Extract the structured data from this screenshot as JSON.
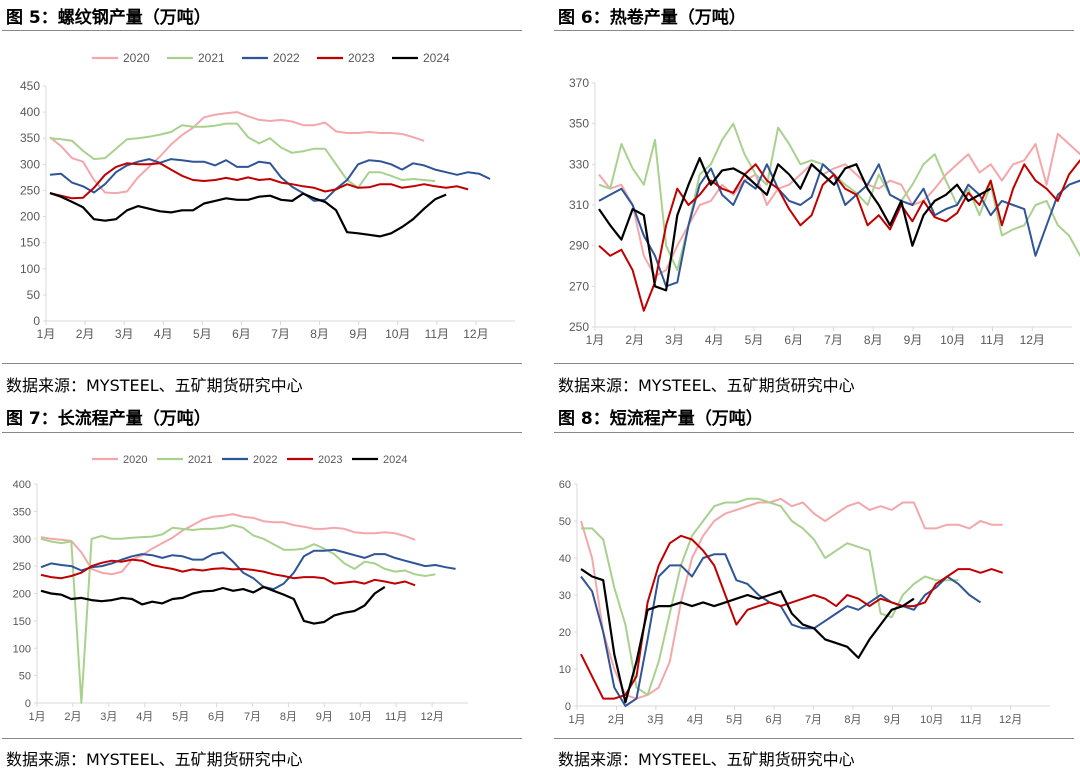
{
  "colors": {
    "2020": "#f4a7aa",
    "2021": "#a9d18e",
    "2022": "#2f5597",
    "2023": "#c00000",
    "2024": "#000000",
    "axis": "#d9d9d9",
    "text": "#595959"
  },
  "panels": [
    {
      "title": "图 5：螺纹钢产量（万吨）",
      "source": "数据来源：MYSTEEL、五矿期货研究中心",
      "chart_data": {
        "type": "line",
        "xlabel": "",
        "ylabel": "",
        "x_ticks": [
          "1月",
          "2月",
          "3月",
          "4月",
          "5月",
          "6月",
          "7月",
          "8月",
          "9月",
          "10月",
          "11月",
          "12月"
        ],
        "ylim": [
          0,
          450
        ],
        "yticks": [
          0,
          50,
          100,
          150,
          200,
          250,
          300,
          350,
          400,
          450
        ],
        "legend_position": "top",
        "series": [
          {
            "name": "2020",
            "values": [
              352,
              335,
              312,
              305,
              270,
              246,
              245,
              248,
              275,
              295,
              315,
              338,
              356,
              370,
              390,
              395,
              398,
              400,
              392,
              385,
              383,
              385,
              382,
              375,
              375,
              380,
              363,
              360,
              360,
              362,
              360,
              360,
              358,
              352,
              345
            ]
          },
          {
            "name": "2021",
            "values": [
              350,
              348,
              345,
              326,
              310,
              312,
              330,
              348,
              350,
              353,
              357,
              362,
              375,
              372,
              372,
              374,
              378,
              378,
              352,
              340,
              350,
              332,
              322,
              325,
              330,
              330,
              300,
              270,
              255,
              285,
              285,
              278,
              270,
              272,
              270,
              268
            ]
          },
          {
            "name": "2022",
            "values": [
              280,
              282,
              265,
              258,
              246,
              262,
              285,
              298,
              305,
              310,
              303,
              310,
              308,
              305,
              305,
              298,
              308,
              295,
              295,
              305,
              302,
              275,
              257,
              245,
              230,
              232,
              253,
              270,
              300,
              308,
              306,
              300,
              290,
              302,
              298,
              290,
              285,
              280,
              285,
              282,
              272
            ]
          },
          {
            "name": "2023",
            "values": [
              245,
              240,
              235,
              236,
              255,
              280,
              295,
              302,
              300,
              300,
              302,
              290,
              278,
              270,
              268,
              270,
              274,
              270,
              275,
              270,
              272,
              265,
              262,
              258,
              255,
              248,
              252,
              262,
              255,
              256,
              262,
              262,
              255,
              258,
              262,
              258,
              255,
              258,
              252
            ]
          },
          {
            "name": "2024",
            "values": [
              245,
              238,
              228,
              218,
              195,
              192,
              195,
              212,
              220,
              215,
              210,
              208,
              212,
              212,
              225,
              230,
              235,
              232,
              232,
              238,
              240,
              232,
              230,
              244,
              235,
              228,
              212,
              170,
              168,
              165,
              162,
              168,
              180,
              195,
              215,
              233,
              242
            ]
          }
        ]
      }
    },
    {
      "title": "图 6：热卷产量（万吨）",
      "source": "数据来源：MYSTEEL、五矿期货研究中心",
      "chart_data": {
        "type": "line",
        "xlabel": "",
        "ylabel": "",
        "x_ticks": [
          "1月",
          "2月",
          "3月",
          "4月",
          "5月",
          "6月",
          "7月",
          "8月",
          "9月",
          "10月",
          "11月",
          "12月"
        ],
        "ylim": [
          250,
          370
        ],
        "yticks": [
          250,
          270,
          290,
          310,
          330,
          350,
          370
        ],
        "legend_position": "top",
        "series": [
          {
            "name": "2020",
            "values": [
              325,
              318,
              320,
              310,
              285,
              275,
              278,
              290,
              300,
              310,
              312,
              320,
              315,
              322,
              325,
              310,
              318,
              320,
              325,
              330,
              325,
              328,
              330,
              325,
              320,
              318,
              322,
              320,
              310,
              312,
              318,
              325,
              330,
              335,
              326,
              330,
              322,
              330,
              332,
              340,
              320,
              345,
              340,
              335,
              336,
              340,
              345,
              352,
              345,
              335,
              333
            ]
          },
          {
            "name": "2021",
            "values": [
              320,
              318,
              340,
              328,
              320,
              342,
              290,
              278,
              300,
              325,
              330,
              342,
              350,
              335,
              325,
              320,
              348,
              340,
              330,
              332,
              330,
              325,
              320,
              316,
              310,
              325,
              315,
              312,
              320,
              330,
              335,
              322,
              310,
              318,
              305,
              320,
              295,
              298,
              300,
              310,
              312,
              300,
              295,
              285,
              280
            ]
          },
          {
            "name": "2022",
            "values": [
              312,
              315,
              318,
              310,
              295,
              285,
              270,
              272,
              300,
              320,
              328,
              315,
              310,
              322,
              318,
              330,
              318,
              312,
              310,
              314,
              330,
              325,
              310,
              315,
              320,
              330,
              315,
              312,
              310,
              318,
              305,
              308,
              310,
              320,
              315,
              305,
              312,
              310,
              308,
              285,
              300,
              315,
              320,
              322,
              310,
              303,
              310,
              312,
              310,
              298,
              304
            ]
          },
          {
            "name": "2023",
            "values": [
              290,
              285,
              288,
              278,
              258,
              272,
              300,
              318,
              310,
              315,
              322,
              318,
              316,
              325,
              330,
              322,
              318,
              308,
              300,
              305,
              320,
              325,
              318,
              315,
              300,
              305,
              298,
              310,
              302,
              312,
              304,
              302,
              306,
              316,
              310,
              322,
              300,
              318,
              330,
              322,
              318,
              312,
              325,
              332,
              336,
              320,
              325,
              327
            ]
          },
          {
            "name": "2024",
            "values": [
              308,
              300,
              293,
              308,
              305,
              270,
              268,
              305,
              320,
              333,
              320,
              327,
              328,
              325,
              320,
              315,
              330,
              325,
              318,
              330,
              325,
              320,
              328,
              330,
              318,
              310,
              300,
              312,
              290,
              305,
              312,
              315,
              320,
              312,
              315,
              318
            ]
          }
        ]
      }
    },
    {
      "title": "图 7：长流程产量（万吨）",
      "source": "数据来源：MYSTEEL、五矿期货研究中心",
      "chart_data": {
        "type": "line",
        "xlabel": "",
        "ylabel": "",
        "x_ticks": [
          "1月",
          "2月",
          "3月",
          "4月",
          "5月",
          "6月",
          "7月",
          "8月",
          "9月",
          "10月",
          "11月",
          "12月"
        ],
        "ylim": [
          0,
          400
        ],
        "yticks": [
          0,
          50,
          100,
          150,
          200,
          250,
          300,
          350,
          400
        ],
        "legend_position": "top",
        "series": [
          {
            "name": "2020",
            "values": [
              303,
              300,
              298,
              296,
              275,
              245,
              238,
              235,
              240,
              262,
              270,
              282,
              292,
              302,
              315,
              325,
              335,
              340,
              342,
              345,
              340,
              338,
              332,
              330,
              330,
              325,
              322,
              318,
              318,
              320,
              318,
              312,
              310,
              310,
              312,
              310,
              305,
              298
            ]
          },
          {
            "name": "2021",
            "values": [
              300,
              295,
              292,
              295,
              0,
              300,
              305,
              300,
              300,
              302,
              303,
              304,
              308,
              320,
              318,
              316,
              318,
              318,
              320,
              325,
              320,
              306,
              300,
              290,
              280,
              280,
              282,
              290,
              282,
              272,
              255,
              245,
              258,
              255,
              245,
              240,
              242,
              235,
              232,
              235
            ]
          },
          {
            "name": "2022",
            "values": [
              248,
              255,
              252,
              250,
              242,
              248,
              250,
              255,
              262,
              268,
              272,
              270,
              265,
              270,
              268,
              262,
              262,
              272,
              275,
              258,
              238,
              228,
              212,
              208,
              218,
              238,
              268,
              278,
              278,
              280,
              275,
              270,
              265,
              272,
              272,
              265,
              260,
              255,
              250,
              252,
              248,
              245
            ]
          },
          {
            "name": "2023",
            "values": [
              234,
              230,
              228,
              232,
              238,
              250,
              256,
              260,
              258,
              262,
              260,
              252,
              248,
              245,
              240,
              244,
              242,
              245,
              246,
              244,
              245,
              243,
              240,
              235,
              232,
              228,
              230,
              230,
              228,
              218,
              220,
              222,
              218,
              225,
              222,
              218,
              222,
              215
            ]
          },
          {
            "name": "2024",
            "values": [
              205,
              200,
              198,
              190,
              192,
              188,
              186,
              188,
              192,
              190,
              180,
              185,
              182,
              190,
              192,
              200,
              204,
              205,
              210,
              205,
              208,
              202,
              212,
              205,
              198,
              190,
              150,
              145,
              148,
              160,
              165,
              168,
              178,
              200,
              212
            ]
          }
        ]
      }
    },
    {
      "title": "图 8：短流程产量（万吨）",
      "source": "数据来源：MYSTEEL、五矿期货研究中心",
      "chart_data": {
        "type": "line",
        "xlabel": "",
        "ylabel": "",
        "x_ticks": [
          "1月",
          "2月",
          "3月",
          "4月",
          "5月",
          "6月",
          "7月",
          "8月",
          "9月",
          "10月",
          "11月",
          "12月"
        ],
        "ylim": [
          0,
          60
        ],
        "yticks": [
          0,
          10,
          20,
          30,
          40,
          50,
          60
        ],
        "legend_position": "top",
        "series": [
          {
            "name": "2020",
            "values": [
              50,
              40,
              20,
              10,
              3,
              2,
              3,
              5,
              12,
              28,
              40,
              46,
              50,
              52,
              53,
              54,
              55,
              55,
              56,
              54,
              55,
              52,
              50,
              52,
              54,
              55,
              53,
              54,
              53,
              55,
              55,
              48,
              48,
              49,
              49,
              48,
              50,
              49,
              49
            ]
          },
          {
            "name": "2021",
            "values": [
              48,
              48,
              45,
              32,
              22,
              5,
              3,
              12,
              25,
              38,
              46,
              50,
              54,
              55,
              55,
              56,
              56,
              55,
              54,
              50,
              48,
              45,
              40,
              42,
              44,
              43,
              42,
              25,
              24,
              30,
              33,
              35,
              34,
              34,
              34
            ]
          },
          {
            "name": "2022",
            "values": [
              35,
              31,
              20,
              5,
              0,
              2,
              18,
              35,
              38,
              38,
              35,
              40,
              41,
              41,
              34,
              33,
              30,
              28,
              27,
              22,
              21,
              21,
              23,
              25,
              27,
              26,
              28,
              30,
              28,
              27,
              26,
              30,
              32,
              35,
              33,
              30,
              28
            ]
          },
          {
            "name": "2023",
            "values": [
              14,
              8,
              2,
              2,
              3,
              8,
              28,
              38,
              44,
              46,
              45,
              42,
              38,
              30,
              22,
              26,
              27,
              28,
              27,
              28,
              29,
              30,
              29,
              27,
              30,
              29,
              27,
              29,
              28,
              27,
              27,
              28,
              33,
              35,
              37,
              37,
              36,
              37,
              36
            ]
          },
          {
            "name": "2024",
            "values": [
              37,
              35,
              34,
              14,
              1,
              12,
              26,
              27,
              27,
              28,
              27,
              28,
              27,
              28,
              29,
              30,
              29,
              30,
              31,
              25,
              22,
              21,
              18,
              17,
              16,
              13,
              18,
              22,
              26,
              27,
              29
            ]
          }
        ]
      }
    }
  ]
}
